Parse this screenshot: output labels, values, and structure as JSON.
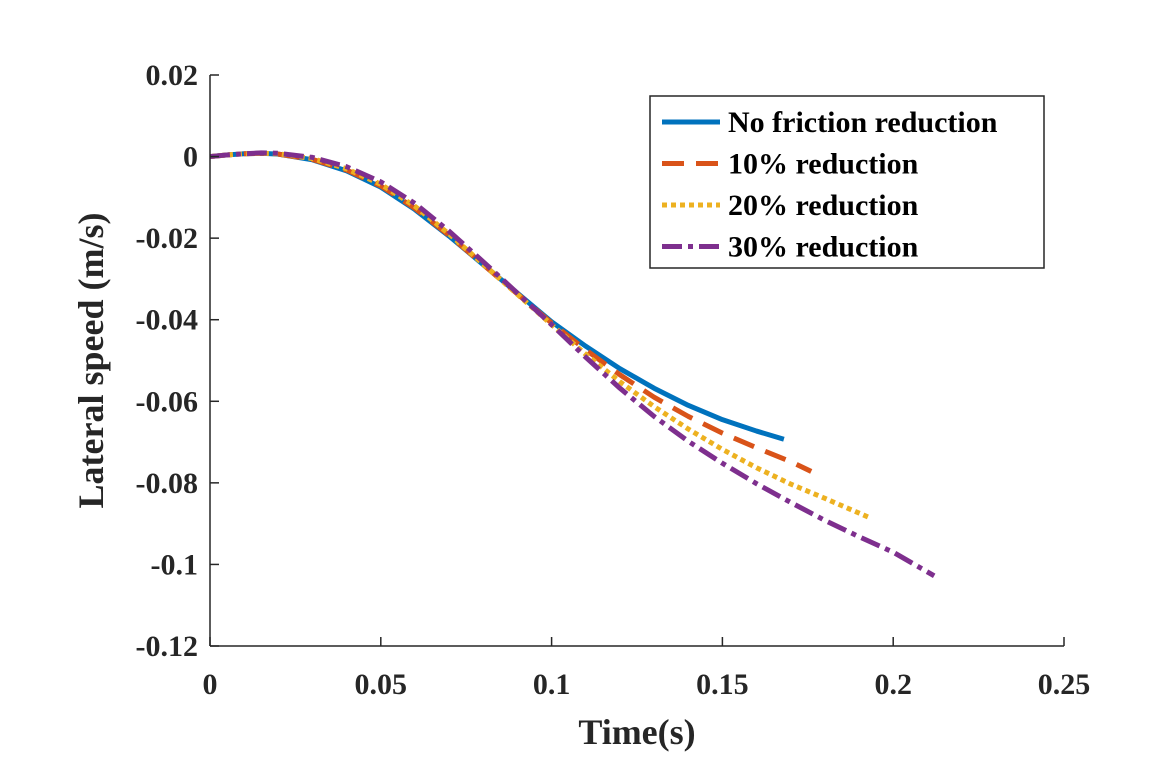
{
  "chart_data": {
    "type": "line",
    "title": "",
    "xlabel": "Time(s)",
    "ylabel": "Lateral speed (m/s)",
    "xlim": [
      0,
      0.25
    ],
    "ylim": [
      -0.12,
      0.02
    ],
    "xticks": [
      0,
      0.05,
      0.1,
      0.15,
      0.2,
      0.25
    ],
    "xtick_labels": [
      "0",
      "0.05",
      "0.1",
      "0.15",
      "0.2",
      "0.25"
    ],
    "yticks": [
      0.02,
      0,
      -0.02,
      -0.04,
      -0.06,
      -0.08,
      -0.1,
      -0.12
    ],
    "ytick_labels": [
      "0.02",
      "0",
      "-0.02",
      "-0.04",
      "-0.06",
      "-0.08",
      "-0.1",
      "-0.12"
    ],
    "grid": false,
    "legend_position": "top-right",
    "series": [
      {
        "name": "No friction reduction",
        "color": "#0072BD",
        "style": "solid",
        "x": [
          0,
          0.005,
          0.01,
          0.015,
          0.02,
          0.03,
          0.04,
          0.05,
          0.06,
          0.07,
          0.08,
          0.09,
          0.1,
          0.11,
          0.12,
          0.13,
          0.14,
          0.15,
          0.16,
          0.168
        ],
        "y": [
          0,
          0.0004,
          0.0007,
          0.0008,
          0.0006,
          -0.0008,
          -0.0035,
          -0.0075,
          -0.013,
          -0.0195,
          -0.0265,
          -0.0335,
          -0.0405,
          -0.0465,
          -0.052,
          -0.0568,
          -0.061,
          -0.0645,
          -0.0673,
          -0.0693
        ]
      },
      {
        "name": "10% reduction",
        "color": "#D95319",
        "style": "dashed",
        "x": [
          0,
          0.005,
          0.01,
          0.015,
          0.02,
          0.03,
          0.04,
          0.05,
          0.06,
          0.07,
          0.08,
          0.09,
          0.1,
          0.11,
          0.12,
          0.13,
          0.14,
          0.15,
          0.16,
          0.17,
          0.176
        ],
        "y": [
          0,
          0.0004,
          0.0007,
          0.0008,
          0.0006,
          -0.0007,
          -0.0033,
          -0.0072,
          -0.0127,
          -0.0193,
          -0.0265,
          -0.0337,
          -0.0408,
          -0.0474,
          -0.0535,
          -0.059,
          -0.0637,
          -0.0678,
          -0.0714,
          -0.0748,
          -0.0772
        ]
      },
      {
        "name": "20% reduction",
        "color": "#EDB120",
        "style": "dotted",
        "x": [
          0,
          0.005,
          0.01,
          0.015,
          0.02,
          0.03,
          0.04,
          0.05,
          0.06,
          0.07,
          0.08,
          0.09,
          0.1,
          0.11,
          0.12,
          0.13,
          0.14,
          0.15,
          0.16,
          0.17,
          0.18,
          0.193
        ],
        "y": [
          0,
          0.0004,
          0.0007,
          0.0008,
          0.0007,
          -0.0005,
          -0.003,
          -0.0068,
          -0.0122,
          -0.019,
          -0.0264,
          -0.0338,
          -0.0412,
          -0.0485,
          -0.0552,
          -0.0613,
          -0.0668,
          -0.0718,
          -0.0763,
          -0.0803,
          -0.0838,
          -0.0885
        ]
      },
      {
        "name": "30% reduction",
        "color": "#7E2F8E",
        "style": "dashdot",
        "x": [
          0,
          0.005,
          0.01,
          0.015,
          0.02,
          0.03,
          0.04,
          0.05,
          0.06,
          0.07,
          0.08,
          0.09,
          0.1,
          0.11,
          0.12,
          0.13,
          0.14,
          0.15,
          0.16,
          0.17,
          0.18,
          0.19,
          0.2,
          0.212
        ],
        "y": [
          0,
          0.0004,
          0.0007,
          0.0009,
          0.0008,
          -0.0002,
          -0.0025,
          -0.0062,
          -0.0115,
          -0.0183,
          -0.0258,
          -0.0335,
          -0.0412,
          -0.0492,
          -0.0568,
          -0.0637,
          -0.0698,
          -0.0752,
          -0.0802,
          -0.0848,
          -0.0892,
          -0.0932,
          -0.097,
          -0.1028
        ]
      }
    ]
  }
}
